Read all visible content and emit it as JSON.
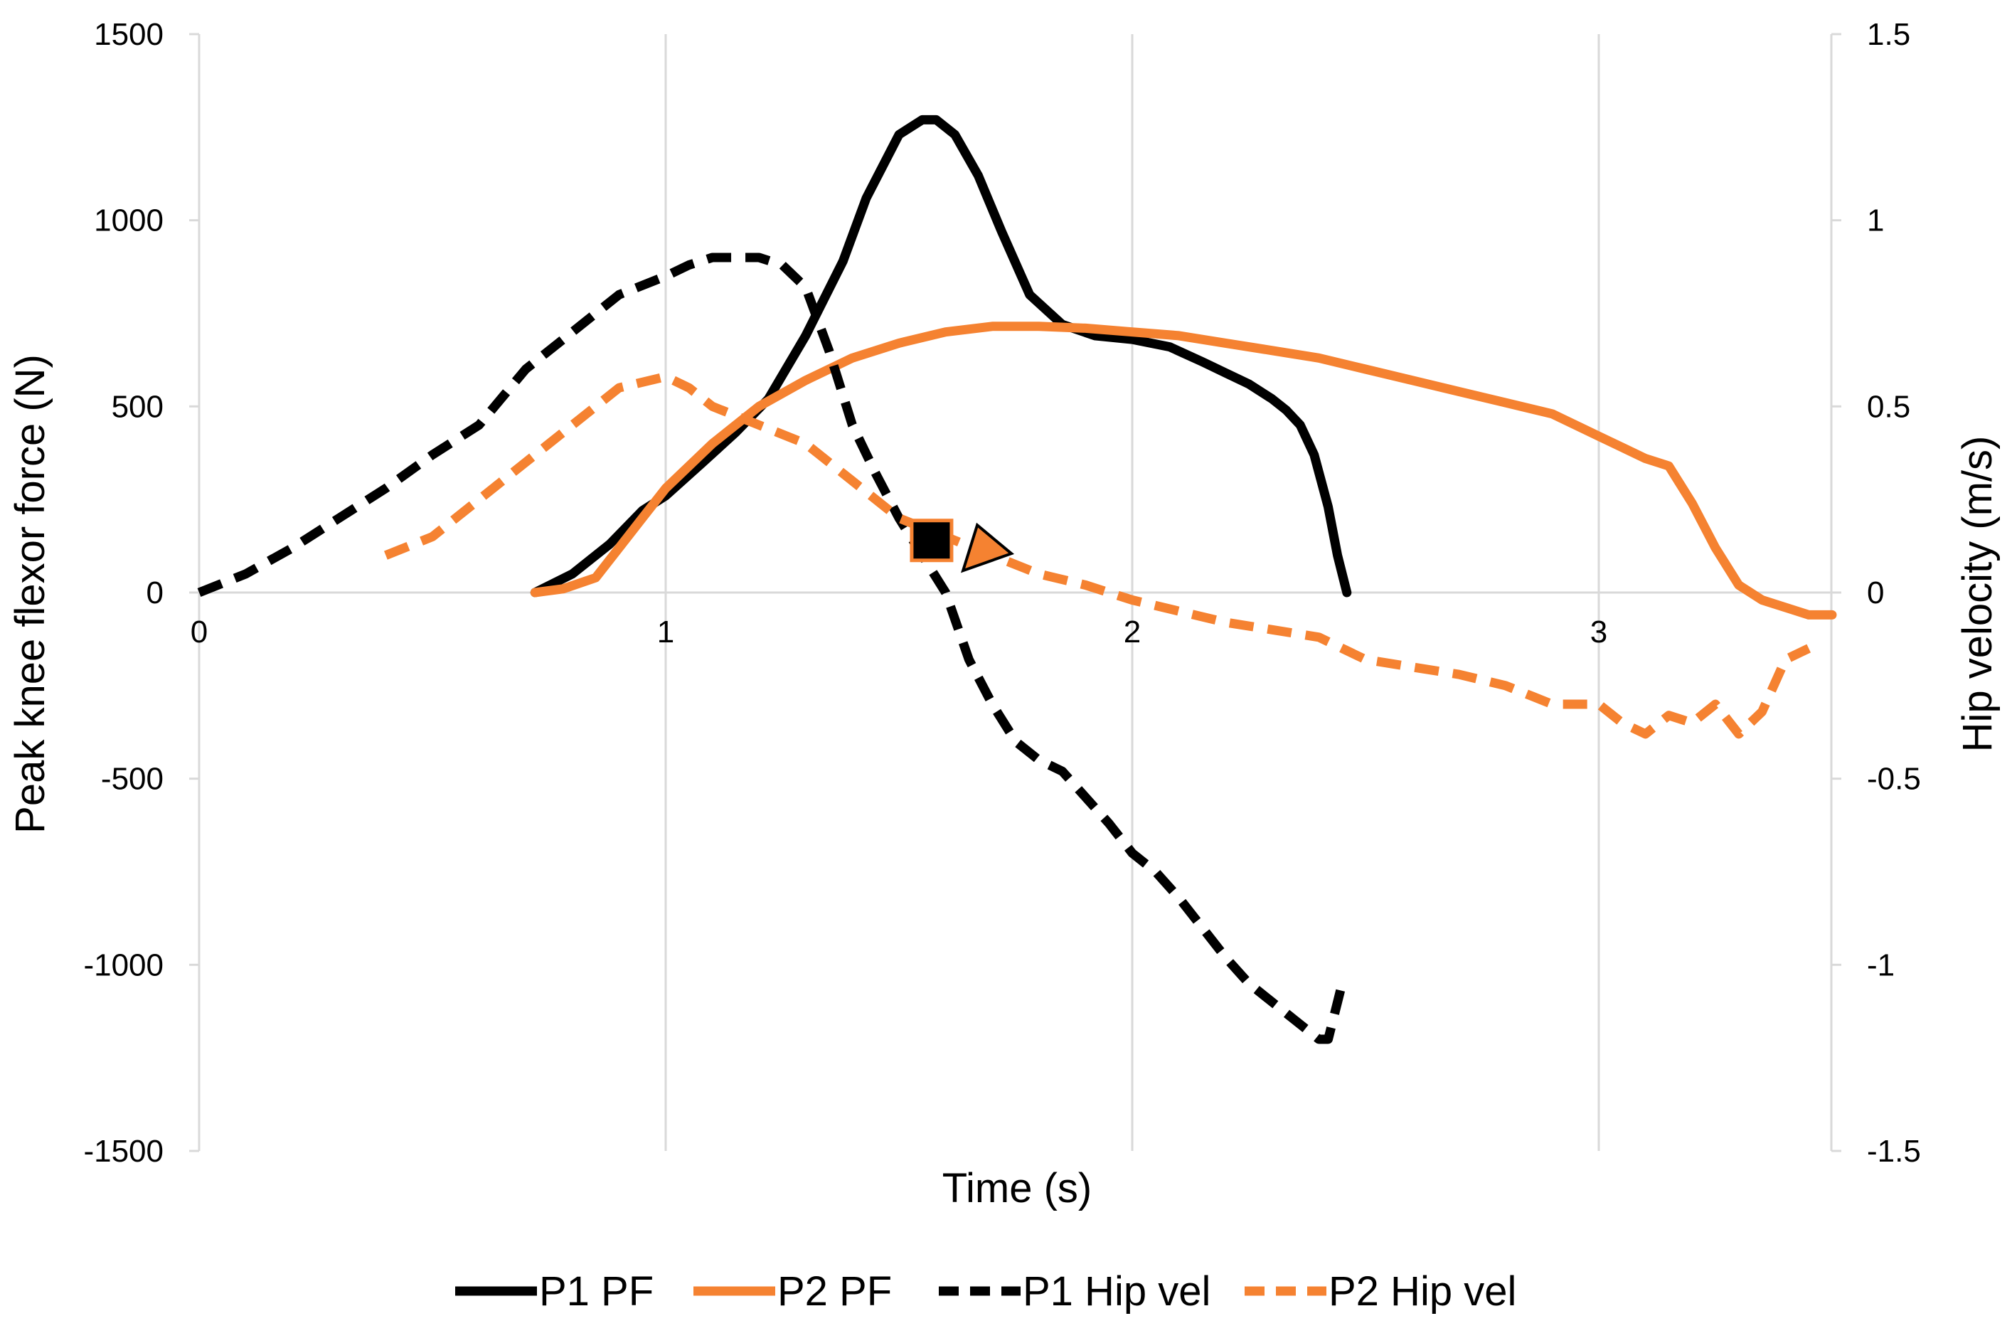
{
  "chart_data": {
    "type": "line",
    "title": "",
    "xlabel": "Time (s)",
    "ylabel": "Peak knee flexor force (N)",
    "y2label": "Hip velocity (m/s)",
    "xlim": [
      0,
      3.5
    ],
    "ylim": [
      -1500,
      1500
    ],
    "y2lim": [
      -1.5,
      1.5
    ],
    "x_ticks": [
      "0",
      "1",
      "2",
      "3"
    ],
    "y_ticks": [
      "1500",
      "1000",
      "500",
      "0",
      "-500",
      "-1000",
      "-1500"
    ],
    "y2_ticks": [
      "1.5",
      "1",
      "0.5",
      "0",
      "-0.5",
      "-1",
      "-1.5"
    ],
    "grid": "vertical",
    "legend_position": "bottom",
    "colors": {
      "black": "#000000",
      "orange": "#f58231"
    },
    "series": [
      {
        "name": "P1 PF",
        "axis": "left",
        "color": "#000000",
        "dash": "solid",
        "x": [
          0.72,
          0.8,
          0.88,
          0.95,
          1.0,
          1.08,
          1.15,
          1.22,
          1.3,
          1.38,
          1.43,
          1.5,
          1.55,
          1.58,
          1.62,
          1.67,
          1.72,
          1.78,
          1.85,
          1.92,
          2.0,
          2.08,
          2.15,
          2.2,
          2.25,
          2.3,
          2.33,
          2.36,
          2.39,
          2.42,
          2.44,
          2.46
        ],
        "y": [
          0,
          50,
          130,
          220,
          260,
          350,
          430,
          520,
          690,
          890,
          1060,
          1230,
          1270,
          1270,
          1230,
          1120,
          970,
          800,
          720,
          690,
          680,
          660,
          620,
          590,
          560,
          520,
          490,
          450,
          370,
          230,
          100,
          0
        ]
      },
      {
        "name": "P2 PF",
        "axis": "left",
        "color": "#f58231",
        "dash": "solid",
        "x": [
          0.72,
          0.78,
          0.85,
          0.9,
          0.95,
          1.0,
          1.1,
          1.2,
          1.3,
          1.4,
          1.5,
          1.6,
          1.7,
          1.8,
          1.9,
          2.0,
          2.1,
          2.2,
          2.3,
          2.4,
          2.5,
          2.6,
          2.7,
          2.8,
          2.9,
          3.0,
          3.1,
          3.15,
          3.2,
          3.25,
          3.3,
          3.35,
          3.4,
          3.45,
          3.5
        ],
        "y": [
          0,
          10,
          40,
          120,
          200,
          280,
          400,
          500,
          570,
          630,
          670,
          700,
          715,
          715,
          710,
          700,
          690,
          670,
          650,
          630,
          600,
          570,
          540,
          510,
          480,
          420,
          360,
          340,
          240,
          120,
          20,
          -20,
          -40,
          -60,
          -60
        ]
      },
      {
        "name": "P1 Hip vel",
        "axis": "right",
        "color": "#000000",
        "dash": "dashed",
        "x": [
          0.0,
          0.1,
          0.2,
          0.3,
          0.4,
          0.5,
          0.6,
          0.7,
          0.8,
          0.9,
          1.0,
          1.05,
          1.1,
          1.15,
          1.2,
          1.25,
          1.3,
          1.35,
          1.4,
          1.45,
          1.5,
          1.55,
          1.6,
          1.65,
          1.7,
          1.75,
          1.8,
          1.85,
          1.9,
          1.95,
          2.0,
          2.05,
          2.1,
          2.15,
          2.2,
          2.25,
          2.3,
          2.35,
          2.4,
          2.42,
          2.45
        ],
        "y": [
          0.0,
          0.05,
          0.12,
          0.2,
          0.28,
          0.37,
          0.45,
          0.6,
          0.7,
          0.8,
          0.85,
          0.88,
          0.9,
          0.9,
          0.9,
          0.88,
          0.82,
          0.65,
          0.45,
          0.32,
          0.2,
          0.1,
          0.0,
          -0.18,
          -0.3,
          -0.4,
          -0.45,
          -0.48,
          -0.55,
          -0.62,
          -0.7,
          -0.75,
          -0.82,
          -0.9,
          -0.98,
          -1.05,
          -1.1,
          -1.15,
          -1.2,
          -1.2,
          -1.05
        ]
      },
      {
        "name": "P2 Hip vel",
        "axis": "right",
        "color": "#f58231",
        "dash": "dashed",
        "x": [
          0.4,
          0.5,
          0.6,
          0.7,
          0.8,
          0.9,
          1.0,
          1.05,
          1.1,
          1.2,
          1.3,
          1.4,
          1.5,
          1.6,
          1.7,
          1.8,
          1.9,
          2.0,
          2.1,
          2.2,
          2.3,
          2.4,
          2.5,
          2.6,
          2.7,
          2.8,
          2.9,
          3.0,
          3.05,
          3.1,
          3.15,
          3.2,
          3.25,
          3.3,
          3.35,
          3.4,
          3.45
        ],
        "y": [
          0.1,
          0.15,
          0.25,
          0.35,
          0.45,
          0.55,
          0.58,
          0.55,
          0.5,
          0.45,
          0.4,
          0.3,
          0.2,
          0.15,
          0.1,
          0.05,
          0.02,
          -0.02,
          -0.05,
          -0.08,
          -0.1,
          -0.12,
          -0.18,
          -0.2,
          -0.22,
          -0.25,
          -0.3,
          -0.3,
          -0.35,
          -0.38,
          -0.33,
          -0.35,
          -0.3,
          -0.38,
          -0.32,
          -0.18,
          -0.15
        ]
      }
    ],
    "markers": [
      {
        "name": "P1 marker",
        "shape": "square",
        "x": 1.57,
        "y": 140,
        "axis": "left",
        "fill": "#000000",
        "stroke": "#f58231"
      },
      {
        "name": "P2 marker",
        "shape": "triangle",
        "x": 1.68,
        "y": 120,
        "axis": "left",
        "fill": "#f58231",
        "stroke": "#000000"
      }
    ]
  }
}
